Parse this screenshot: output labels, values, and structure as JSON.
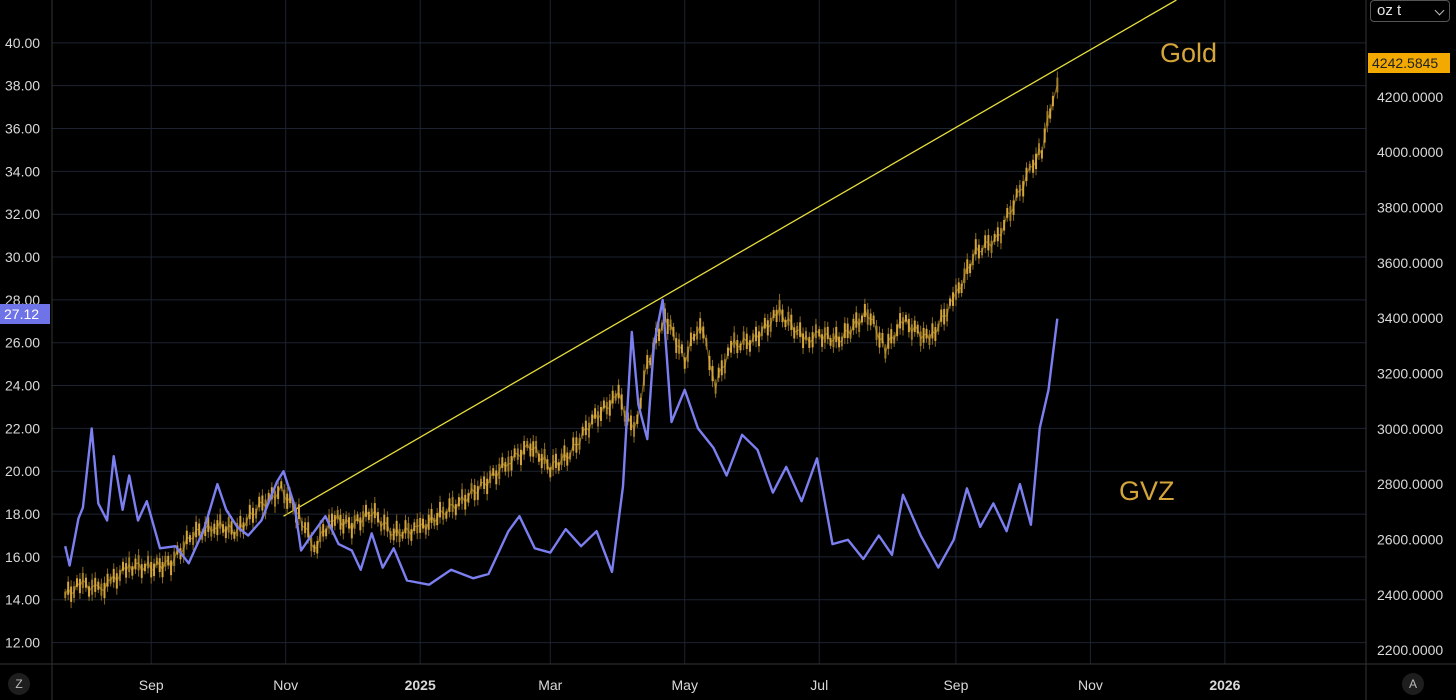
{
  "chart_data": {
    "type": "line",
    "x_axis": {
      "labels": [
        "Sep",
        "Nov",
        "2025",
        "Mar",
        "May",
        "Jul",
        "Sep",
        "Nov",
        "2026"
      ],
      "bold": [
        false,
        false,
        true,
        false,
        false,
        false,
        false,
        false,
        true
      ]
    },
    "left_axis": {
      "ticks": [
        "12.00",
        "14.00",
        "16.00",
        "18.00",
        "20.00",
        "22.00",
        "24.00",
        "26.00",
        "28.00",
        "30.00",
        "32.00",
        "34.00",
        "36.00",
        "38.00",
        "40.00"
      ],
      "range": [
        11,
        42
      ]
    },
    "right_axis": {
      "ticks": [
        "2200.0000",
        "2400.0000",
        "2600.0000",
        "2800.0000",
        "3000.0000",
        "3200.0000",
        "3400.0000",
        "3600.0000",
        "3800.0000",
        "4000.0000",
        "4200.0000"
      ],
      "range": [
        2150,
        4550
      ],
      "unit": "oz t"
    },
    "series": [
      {
        "name": "Gold",
        "axis": "right",
        "color": "#d4a53a",
        "last_value_label": "4242.5845",
        "points": [
          [
            "2024-07-24",
            2400
          ],
          [
            "2024-08-01",
            2440
          ],
          [
            "2024-08-08",
            2415
          ],
          [
            "2024-08-15",
            2455
          ],
          [
            "2024-08-22",
            2505
          ],
          [
            "2024-09-01",
            2500
          ],
          [
            "2024-09-10",
            2515
          ],
          [
            "2024-09-20",
            2620
          ],
          [
            "2024-10-01",
            2650
          ],
          [
            "2024-10-10",
            2630
          ],
          [
            "2024-10-20",
            2720
          ],
          [
            "2024-10-30",
            2780
          ],
          [
            "2024-11-07",
            2690
          ],
          [
            "2024-11-14",
            2570
          ],
          [
            "2024-11-22",
            2680
          ],
          [
            "2024-12-01",
            2650
          ],
          [
            "2024-12-10",
            2700
          ],
          [
            "2024-12-20",
            2620
          ],
          [
            "2025-01-01",
            2640
          ],
          [
            "2025-01-10",
            2690
          ],
          [
            "2025-01-20",
            2740
          ],
          [
            "2025-01-30",
            2800
          ],
          [
            "2025-02-10",
            2880
          ],
          [
            "2025-02-20",
            2940
          ],
          [
            "2025-03-01",
            2860
          ],
          [
            "2025-03-10",
            2910
          ],
          [
            "2025-03-20",
            3030
          ],
          [
            "2025-04-01",
            3120
          ],
          [
            "2025-04-08",
            2980
          ],
          [
            "2025-04-14",
            3230
          ],
          [
            "2025-04-22",
            3410
          ],
          [
            "2025-05-01",
            3250
          ],
          [
            "2025-05-08",
            3390
          ],
          [
            "2025-05-15",
            3160
          ],
          [
            "2025-05-22",
            3300
          ],
          [
            "2025-06-01",
            3320
          ],
          [
            "2025-06-13",
            3420
          ],
          [
            "2025-06-25",
            3320
          ],
          [
            "2025-07-01",
            3340
          ],
          [
            "2025-07-10",
            3320
          ],
          [
            "2025-07-23",
            3420
          ],
          [
            "2025-07-31",
            3290
          ],
          [
            "2025-08-08",
            3390
          ],
          [
            "2025-08-20",
            3320
          ],
          [
            "2025-09-01",
            3480
          ],
          [
            "2025-09-10",
            3640
          ],
          [
            "2025-09-20",
            3690
          ],
          [
            "2025-09-30",
            3860
          ],
          [
            "2025-10-06",
            3960
          ],
          [
            "2025-10-10",
            4010
          ],
          [
            "2025-10-15",
            4200
          ],
          [
            "2025-10-17",
            4242.5845
          ]
        ]
      },
      {
        "name": "GVZ",
        "axis": "left",
        "color": "#7b7ff0",
        "last_value_label": "27.12",
        "points": [
          [
            "2024-07-24",
            16.5
          ],
          [
            "2024-07-26",
            15.6
          ],
          [
            "2024-07-30",
            17.8
          ],
          [
            "2024-08-01",
            18.3
          ],
          [
            "2024-08-05",
            22.0
          ],
          [
            "2024-08-08",
            18.5
          ],
          [
            "2024-08-12",
            17.7
          ],
          [
            "2024-08-15",
            20.7
          ],
          [
            "2024-08-19",
            18.2
          ],
          [
            "2024-08-22",
            19.8
          ],
          [
            "2024-08-26",
            17.7
          ],
          [
            "2024-08-30",
            18.6
          ],
          [
            "2024-09-05",
            16.4
          ],
          [
            "2024-09-12",
            16.5
          ],
          [
            "2024-09-18",
            15.7
          ],
          [
            "2024-09-25",
            17.3
          ],
          [
            "2024-10-01",
            19.4
          ],
          [
            "2024-10-05",
            18.2
          ],
          [
            "2024-10-10",
            17.4
          ],
          [
            "2024-10-15",
            17.0
          ],
          [
            "2024-10-21",
            17.7
          ],
          [
            "2024-10-28",
            19.5
          ],
          [
            "2024-10-31",
            20.0
          ],
          [
            "2024-11-05",
            18.4
          ],
          [
            "2024-11-08",
            16.3
          ],
          [
            "2024-11-12",
            16.9
          ],
          [
            "2024-11-19",
            17.9
          ],
          [
            "2024-11-25",
            16.6
          ],
          [
            "2024-12-01",
            16.3
          ],
          [
            "2024-12-05",
            15.4
          ],
          [
            "2024-12-10",
            17.1
          ],
          [
            "2024-12-15",
            15.5
          ],
          [
            "2024-12-20",
            16.4
          ],
          [
            "2024-12-26",
            14.9
          ],
          [
            "2025-01-05",
            14.7
          ],
          [
            "2025-01-15",
            15.4
          ],
          [
            "2025-01-25",
            15.0
          ],
          [
            "2025-02-01",
            15.2
          ],
          [
            "2025-02-10",
            17.2
          ],
          [
            "2025-02-15",
            17.9
          ],
          [
            "2025-02-22",
            16.4
          ],
          [
            "2025-03-01",
            16.2
          ],
          [
            "2025-03-08",
            17.3
          ],
          [
            "2025-03-15",
            16.5
          ],
          [
            "2025-03-22",
            17.2
          ],
          [
            "2025-03-29",
            15.3
          ],
          [
            "2025-04-03",
            19.3
          ],
          [
            "2025-04-07",
            26.5
          ],
          [
            "2025-04-10",
            23.1
          ],
          [
            "2025-04-14",
            21.5
          ],
          [
            "2025-04-17",
            25.9
          ],
          [
            "2025-04-21",
            28.0
          ],
          [
            "2025-04-25",
            22.3
          ],
          [
            "2025-05-01",
            23.8
          ],
          [
            "2025-05-07",
            22.0
          ],
          [
            "2025-05-14",
            21.1
          ],
          [
            "2025-05-20",
            19.8
          ],
          [
            "2025-05-27",
            21.7
          ],
          [
            "2025-06-03",
            21.0
          ],
          [
            "2025-06-10",
            19.0
          ],
          [
            "2025-06-16",
            20.2
          ],
          [
            "2025-06-23",
            18.6
          ],
          [
            "2025-06-30",
            20.6
          ],
          [
            "2025-07-07",
            16.6
          ],
          [
            "2025-07-14",
            16.8
          ],
          [
            "2025-07-21",
            15.9
          ],
          [
            "2025-07-28",
            17.0
          ],
          [
            "2025-08-03",
            16.1
          ],
          [
            "2025-08-08",
            18.9
          ],
          [
            "2025-08-16",
            17.0
          ],
          [
            "2025-08-24",
            15.5
          ],
          [
            "2025-08-31",
            16.8
          ],
          [
            "2025-09-06",
            19.2
          ],
          [
            "2025-09-12",
            17.4
          ],
          [
            "2025-09-18",
            18.5
          ],
          [
            "2025-09-24",
            17.2
          ],
          [
            "2025-09-30",
            19.4
          ],
          [
            "2025-10-05",
            17.5
          ],
          [
            "2025-10-09",
            22.0
          ],
          [
            "2025-10-13",
            23.8
          ],
          [
            "2025-10-17",
            27.12
          ]
        ]
      }
    ],
    "trendline": {
      "color": "#e6dd3c",
      "points": [
        [
          "2024-10-31",
          17.9
        ],
        [
          "2025-12-10",
          42.0
        ]
      ],
      "axis": "left"
    },
    "labels_on_chart": [
      "Gold",
      "GVZ"
    ],
    "grid": true,
    "legend": "none"
  },
  "ui": {
    "unit_selector": "oz t",
    "bottom_left_button": "Z",
    "bottom_right_button": "A"
  }
}
